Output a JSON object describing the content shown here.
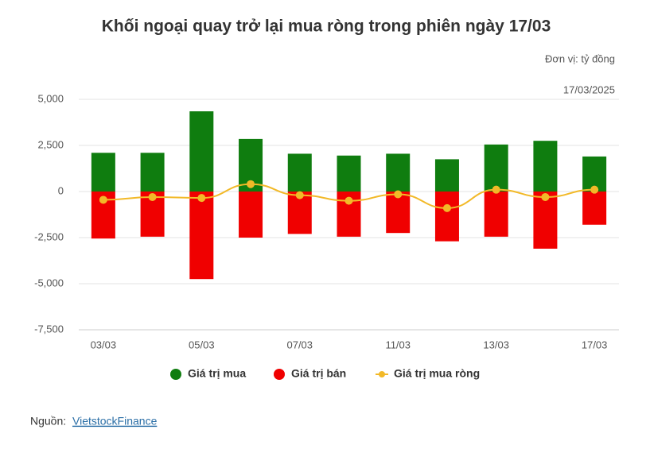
{
  "chart_data": {
    "type": "bar",
    "title": "Khối ngoại quay trở lại mua ròng trong phiên ngày 17/03",
    "unit": "Đơn vị: tỷ đồng",
    "date": "17/03/2025",
    "categories": [
      "03/03",
      null,
      "05/03",
      null,
      "07/03",
      null,
      "11/03",
      null,
      "13/03",
      null,
      "17/03"
    ],
    "series": [
      {
        "name": "Giá trị mua",
        "color": "#0f7d0f",
        "kind": "bar",
        "values": [
          2100,
          2100,
          4350,
          2850,
          2050,
          1950,
          2050,
          1750,
          2550,
          2750,
          1900
        ]
      },
      {
        "name": "Giá trị bán",
        "color": "#f00000",
        "kind": "bar",
        "values": [
          -2550,
          -2450,
          -4750,
          -2500,
          -2300,
          -2450,
          -2250,
          -2700,
          -2450,
          -3100,
          -1800
        ]
      },
      {
        "name": "Giá trị mua ròng",
        "color": "#f2b928",
        "kind": "line",
        "values": [
          -450,
          -300,
          -350,
          400,
          -200,
          -500,
          -150,
          -900,
          100,
          -300,
          100
        ]
      }
    ],
    "ylim": [
      -7500,
      5000
    ],
    "yticks": [
      {
        "value": -7500,
        "label": "-7,500"
      },
      {
        "value": -5000,
        "label": "-5,000"
      },
      {
        "value": -2500,
        "label": "-2,500"
      },
      0,
      {
        "value": 2500,
        "label": "2,500"
      },
      {
        "value": 5000,
        "label": "5,000"
      }
    ],
    "grid": true,
    "source_label": "Nguồn:",
    "source_link": "VietstockFinance"
  }
}
